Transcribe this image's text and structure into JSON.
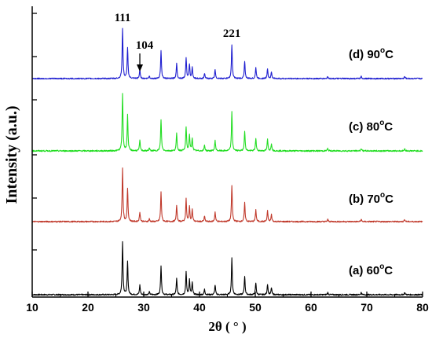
{
  "chart_data": {
    "type": "line",
    "title": "",
    "xlabel": "2θ ( ° )",
    "ylabel": "Intensity (a.u.)",
    "xlim": [
      10,
      80
    ],
    "xticks": [
      "10",
      "20",
      "30",
      "40",
      "50",
      "60",
      "70",
      "80"
    ],
    "y_ticks_labeled": false,
    "grid": false,
    "baseline_noise": 0.012,
    "peaks": [
      {
        "x": 26.2,
        "rel": 1.0
      },
      {
        "x": 27.1,
        "rel": 0.62
      },
      {
        "x": 29.3,
        "rel": 0.18
      },
      {
        "x": 31.0,
        "rel": 0.05
      },
      {
        "x": 33.1,
        "rel": 0.55
      },
      {
        "x": 35.9,
        "rel": 0.3
      },
      {
        "x": 37.6,
        "rel": 0.42
      },
      {
        "x": 38.2,
        "rel": 0.28
      },
      {
        "x": 38.7,
        "rel": 0.22
      },
      {
        "x": 40.9,
        "rel": 0.1
      },
      {
        "x": 42.8,
        "rel": 0.18
      },
      {
        "x": 45.8,
        "rel": 0.68
      },
      {
        "x": 48.1,
        "rel": 0.35
      },
      {
        "x": 50.1,
        "rel": 0.22
      },
      {
        "x": 52.2,
        "rel": 0.2
      },
      {
        "x": 52.9,
        "rel": 0.13
      },
      {
        "x": 63.0,
        "rel": 0.04
      },
      {
        "x": 69.0,
        "rel": 0.04
      },
      {
        "x": 76.8,
        "rel": 0.04
      }
    ],
    "series": [
      {
        "name": "(a) 60°C",
        "label_prefix": "(a) ",
        "label_temp": "60",
        "color": "#000000",
        "scale": 1.0
      },
      {
        "name": "(b) 70°C",
        "label_prefix": "(b) ",
        "label_temp": "70",
        "color": "#c0392b",
        "scale": 1.0
      },
      {
        "name": "(c) 80°C",
        "label_prefix": "(c) ",
        "label_temp": "80",
        "color": "#22dd22",
        "scale": 1.0
      },
      {
        "name": "(d) 90°C",
        "label_prefix": "(d) ",
        "label_temp": "90",
        "color": "#1f1fd0",
        "scale": 1.0
      }
    ],
    "annotations": [
      {
        "text": "111",
        "x": 26.2
      },
      {
        "text": "104",
        "x": 29.3,
        "arrow": true
      },
      {
        "text": "221",
        "x": 45.8
      }
    ],
    "degree_symbol": "o",
    "unit_letter": "C"
  }
}
